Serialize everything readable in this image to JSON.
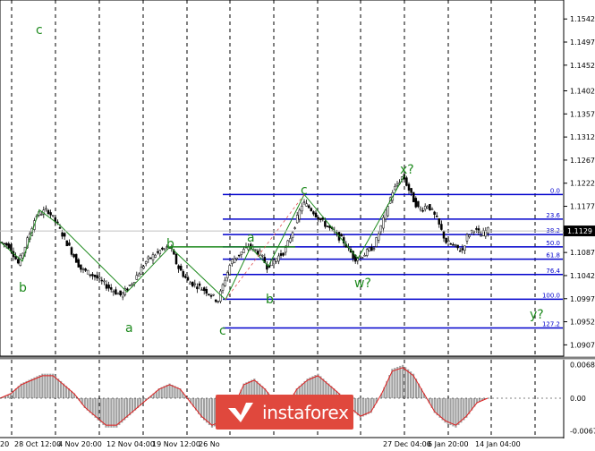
{
  "chart_data": [
    {
      "type": "candlestick",
      "title": "",
      "instrument_price_label": "1.1129",
      "y_ticks": [
        "1.1542",
        "1.1497",
        "1.1452",
        "1.1402",
        "1.1357",
        "1.1312",
        "1.1267",
        "1.1222",
        "1.1177",
        "1.1132",
        "1.1087",
        "1.1042",
        "1.0997",
        "1.0952",
        "1.0907"
      ],
      "x_tick_labels": [
        "20",
        "28 Oct 12:00",
        "4 Nov 20:00",
        "12 Nov 04:00",
        "19 Nov 12:00",
        "26 No",
        "27 Dec 04:00",
        "6 Jan 20:00",
        "14 Jan 04:00"
      ],
      "ylim": [
        1.0885,
        1.1572
      ],
      "grid": "vertical-dashed",
      "price_path": [
        [
          0,
          1.1108
        ],
        [
          12,
          1.11
        ],
        [
          22,
          1.1065
        ],
        [
          32,
          1.111
        ],
        [
          42,
          1.116
        ],
        [
          55,
          1.117
        ],
        [
          66,
          1.114
        ],
        [
          78,
          1.11
        ],
        [
          92,
          1.1055
        ],
        [
          108,
          1.104
        ],
        [
          122,
          1.102
        ],
        [
          137,
          1.1003
        ],
        [
          150,
          1.103
        ],
        [
          165,
          1.107
        ],
        [
          180,
          1.109
        ],
        [
          192,
          1.1098
        ],
        [
          200,
          1.106
        ],
        [
          212,
          1.103
        ],
        [
          222,
          1.1022
        ],
        [
          234,
          1.101
        ],
        [
          245,
          1.0992
        ],
        [
          252,
          1.103
        ],
        [
          260,
          1.107
        ],
        [
          270,
          1.1085
        ],
        [
          280,
          1.11
        ],
        [
          292,
          1.1085
        ],
        [
          300,
          1.106
        ],
        [
          310,
          1.1075
        ],
        [
          320,
          1.109
        ],
        [
          330,
          1.1135
        ],
        [
          340,
          1.1185
        ],
        [
          350,
          1.117
        ],
        [
          360,
          1.115
        ],
        [
          372,
          1.113
        ],
        [
          385,
          1.111
        ],
        [
          398,
          1.1075
        ],
        [
          410,
          1.1085
        ],
        [
          420,
          1.11
        ],
        [
          430,
          1.115
        ],
        [
          440,
          1.1205
        ],
        [
          452,
          1.1237
        ],
        [
          462,
          1.1195
        ],
        [
          470,
          1.117
        ],
        [
          480,
          1.118
        ],
        [
          490,
          1.115
        ],
        [
          500,
          1.1108
        ],
        [
          510,
          1.1098
        ],
        [
          518,
          1.109
        ],
        [
          524,
          1.112
        ],
        [
          532,
          1.1135
        ],
        [
          538,
          1.1118
        ],
        [
          545,
          1.113
        ]
      ],
      "fibonacci_levels": [
        {
          "label": "0.0",
          "value": 1.12
        },
        {
          "label": "23.6",
          "value": 1.1152
        },
        {
          "label": "38.2",
          "value": 1.1122
        },
        {
          "label": "50.0",
          "value": 1.1098
        },
        {
          "label": "61.8",
          "value": 1.1074
        },
        {
          "label": "76.4",
          "value": 1.1044
        },
        {
          "label": "100.0",
          "value": 1.0996
        },
        {
          "label": "127.2",
          "value": 1.094
        }
      ],
      "wave_labels": [
        "c",
        "b",
        "a",
        "b",
        "c",
        "a",
        "b",
        "c",
        "w?",
        "x?",
        "y?"
      ],
      "wave_colors": {
        "wave": "#1e8a1e",
        "fib": "#0000cc",
        "candle": "#000000",
        "current_price_line": "#c0c0c0"
      }
    },
    {
      "type": "area",
      "role": "oscillator",
      "y_ticks": [
        "0.00686",
        "0.00",
        "-0.0067"
      ],
      "ylim": [
        -0.0075,
        0.0075
      ],
      "series": [
        {
          "values": [
            0.0,
            0.001,
            0.003,
            0.004,
            0.005,
            0.005,
            0.003,
            0.001,
            -0.002,
            -0.004,
            -0.006,
            -0.006,
            -0.004,
            -0.002,
            0.0,
            0.002,
            0.003,
            0.002,
            -0.001,
            -0.004,
            -0.006,
            -0.005,
            -0.002,
            0.003,
            0.004,
            0.002,
            -0.001,
            -0.002,
            0.002,
            0.004,
            0.005,
            0.003,
            0.001,
            -0.002,
            -0.004,
            -0.003,
            0.001,
            0.006,
            0.0068,
            0.005,
            0.001,
            -0.003,
            -0.005,
            -0.006,
            -0.004,
            -0.001,
            0.0
          ]
        }
      ],
      "colors": {
        "histogram": "#a0a0a0",
        "signal": "#e02020"
      }
    }
  ],
  "branding": {
    "logo_text": "instaforex",
    "logo_color": "#e0483d"
  }
}
